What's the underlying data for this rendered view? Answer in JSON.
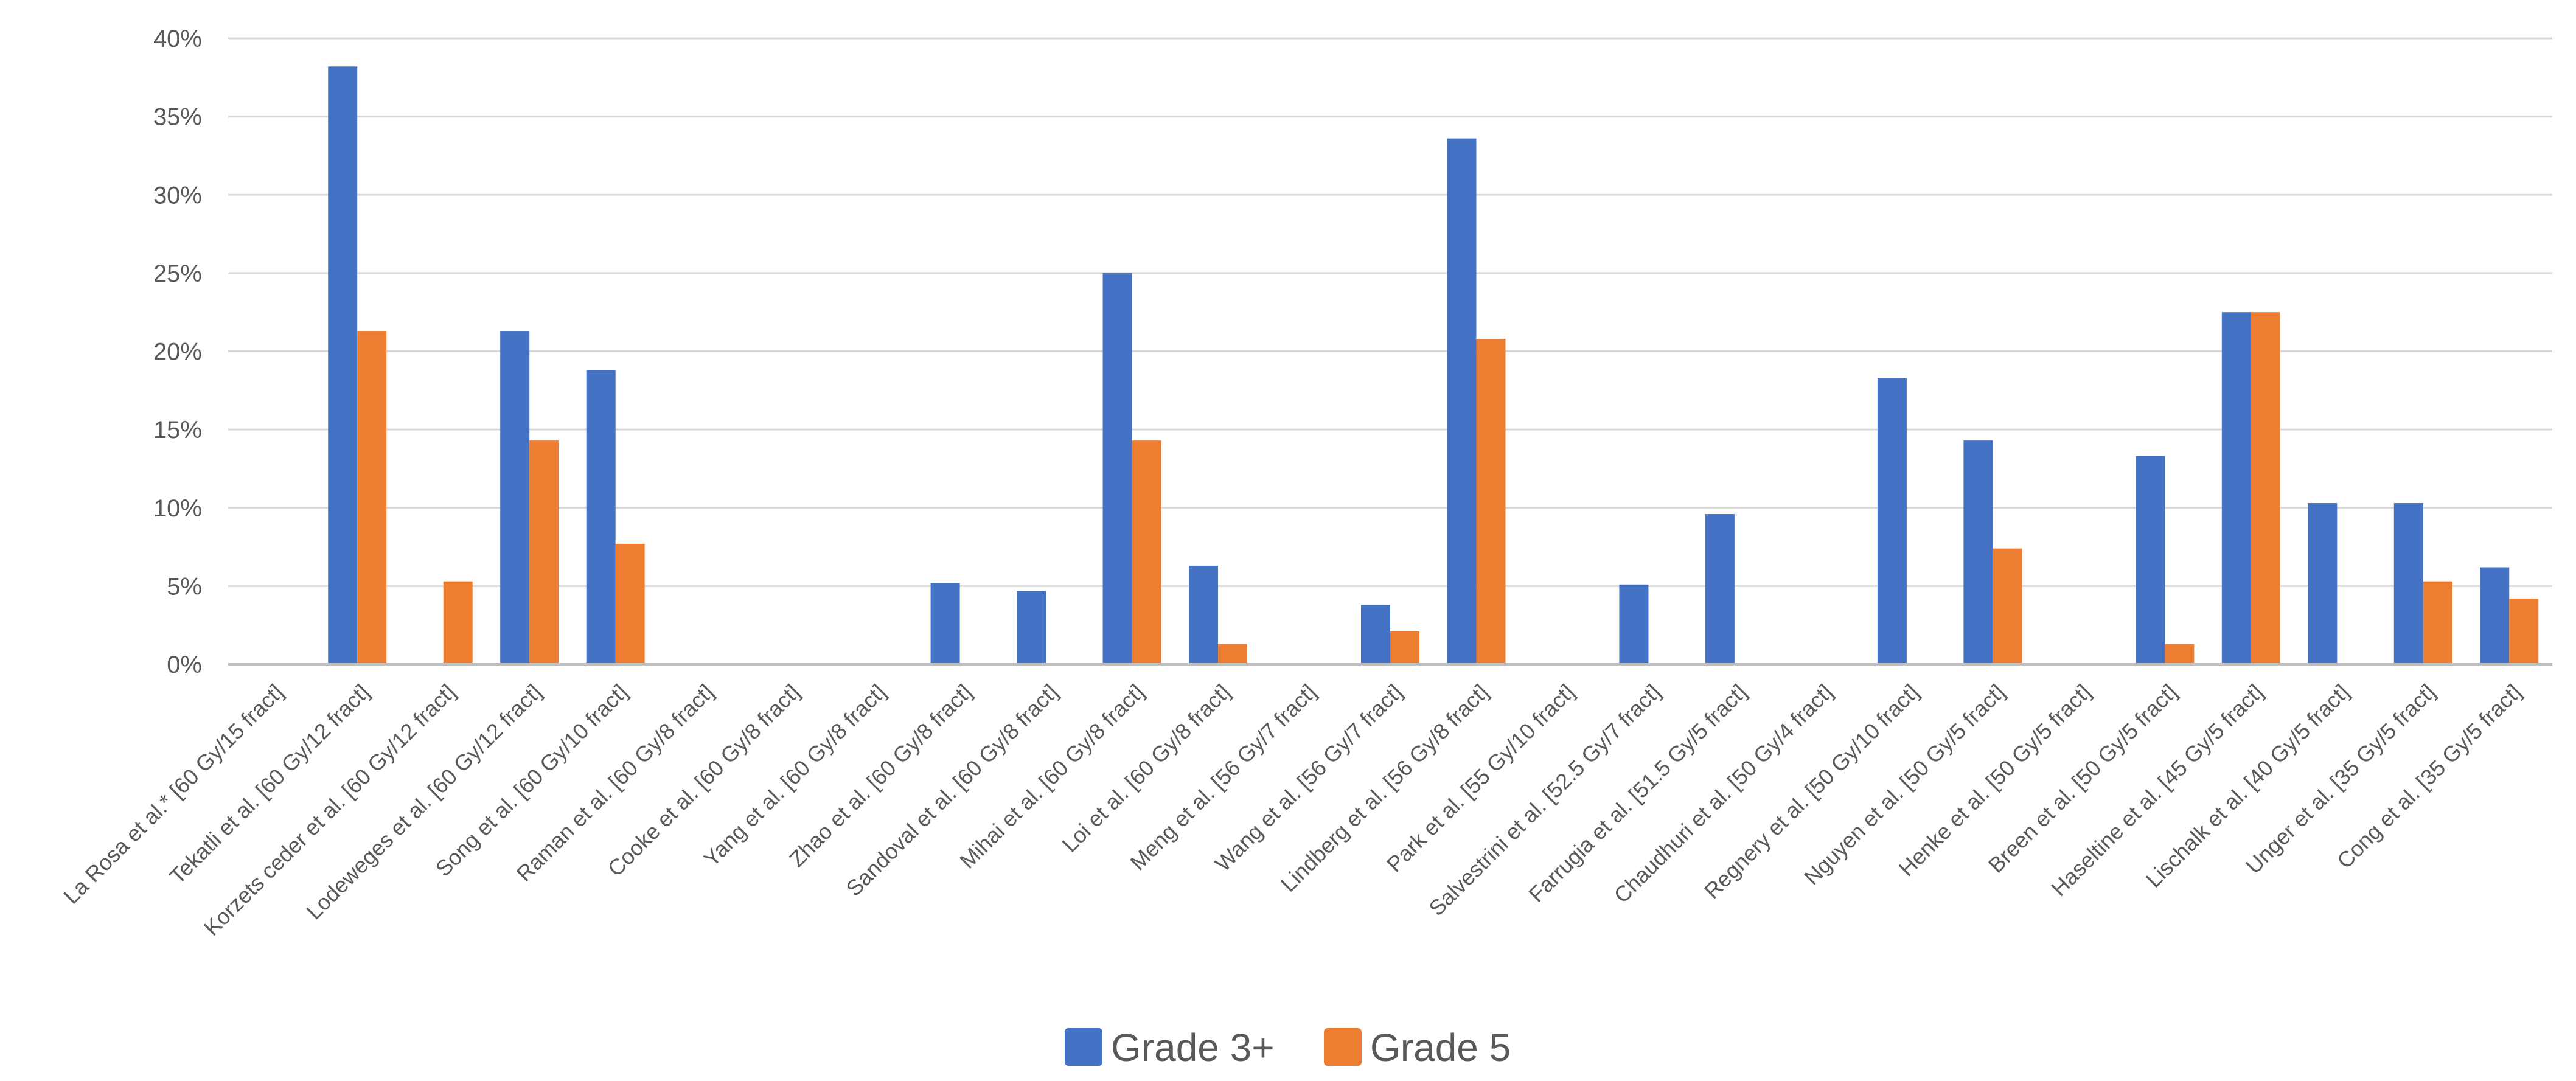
{
  "chart_data": {
    "type": "bar",
    "title": "",
    "xlabel": "",
    "ylabel": "",
    "ylim": [
      0,
      40
    ],
    "y_ticks": [
      "0%",
      "5%",
      "10%",
      "15%",
      "20%",
      "25%",
      "30%",
      "35%",
      "40%"
    ],
    "grid": true,
    "legend_position": "bottom",
    "categories": [
      "La Rosa et al.* [60 Gy/15 fract]",
      "Tekatli et al. [60 Gy/12 fract]",
      "Korzets ceder et al. [60 Gy/12 fract]",
      "Lodeweges et al. [60 Gy/12 fract]",
      "Song et al. [60 Gy/10 fract]",
      "Raman et al. [60 Gy/8 fract]",
      "Cooke et al. [60 Gy/8 fract]",
      "Yang et al. [60 Gy/8 fract]",
      "Zhao et al. [60 Gy/8 fract]",
      "Sandoval et al. [60 Gy/8 fract]",
      "Mihai et al. [60 Gy/8 fract]",
      "Loi et al. [60 Gy/8 fract]",
      "Meng et al. [56 Gy/7 fract]",
      "Wang et al. [56 Gy/7 fract]",
      "Lindberg et al. [56 Gy/8 fract]",
      "Park et al. [55 Gy/10 fract]",
      "Salvestrini et al. [52.5 Gy/7 fract]",
      "Farrugia et al. [51.5 Gy/5 fract]",
      "Chaudhuri et al. [50 Gy/4 fract]",
      "Regnery et al. [50 Gy/10 fract]",
      "Nguyen et al. [50 Gy/5 fract]",
      "Henke et al. [50 Gy/5 fract]",
      "Breen et al. [50 Gy/5 fract]",
      "Haseltine et al. [45 Gy/5 fract]",
      "Lischalk et al. [40 Gy/5 fract]",
      "Unger et al. [35 Gy/5 fract]",
      "Cong et al. [35 Gy/5 fract]"
    ],
    "series": [
      {
        "name": "Grade 3+",
        "color": "#4472C4",
        "values": [
          0,
          38.2,
          0,
          21.3,
          18.8,
          0,
          0,
          0,
          5.2,
          4.7,
          25.0,
          6.3,
          0,
          3.8,
          33.6,
          0,
          5.1,
          9.6,
          0,
          18.3,
          14.3,
          0,
          13.3,
          22.5,
          10.3,
          10.3,
          6.2
        ]
      },
      {
        "name": "Grade 5",
        "color": "#ED7D31",
        "values": [
          0,
          21.3,
          5.3,
          14.3,
          7.7,
          0,
          0,
          0,
          0,
          0,
          14.3,
          1.3,
          0,
          2.1,
          20.8,
          0,
          0,
          0,
          0,
          0,
          7.4,
          0,
          1.3,
          22.5,
          0,
          5.3,
          4.2
        ]
      }
    ]
  }
}
